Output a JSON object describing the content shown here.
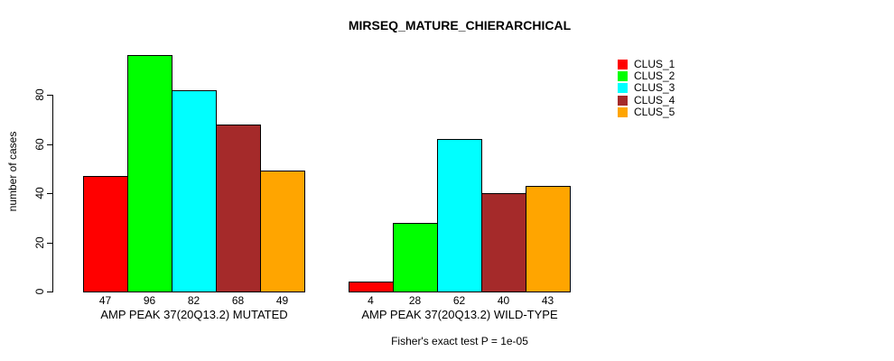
{
  "chart_data": {
    "type": "bar",
    "title": "MIRSEQ_MATURE_CHIERARCHICAL",
    "ylabel": "number of cases",
    "xlabel": "",
    "ylim": [
      0,
      80
    ],
    "yticks": [
      0,
      20,
      40,
      60,
      80
    ],
    "grid": false,
    "legend_position": "right",
    "categories": [
      "AMP PEAK 37(20Q13.2) MUTATED",
      "AMP PEAK 37(20Q13.2) WILD-TYPE"
    ],
    "series": [
      {
        "name": "CLUS_1",
        "color": "#ff0000",
        "values": [
          47,
          4
        ]
      },
      {
        "name": "CLUS_2",
        "color": "#00ff00",
        "values": [
          96,
          28
        ]
      },
      {
        "name": "CLUS_3",
        "color": "#00ffff",
        "values": [
          82,
          62
        ]
      },
      {
        "name": "CLUS_4",
        "color": "#a52a2a",
        "values": [
          68,
          40
        ]
      },
      {
        "name": "CLUS_5",
        "color": "#ffa500",
        "values": [
          49,
          43
        ]
      }
    ],
    "bar_value_labels": [
      [
        47,
        96,
        82,
        68,
        49
      ],
      [
        4,
        28,
        62,
        40,
        43
      ]
    ],
    "annotation": "Fisher's exact test P = 1e-05"
  }
}
